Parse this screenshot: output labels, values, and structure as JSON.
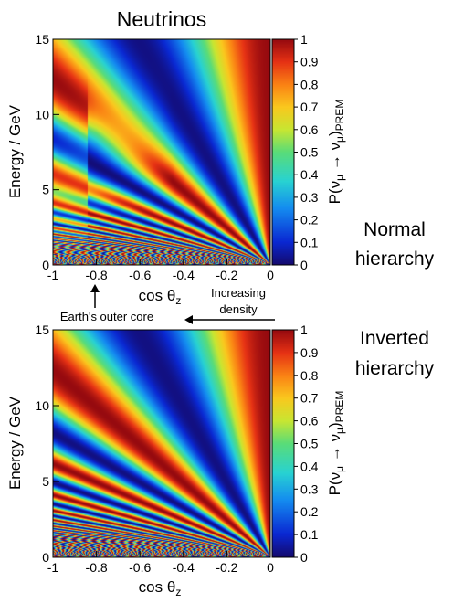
{
  "title": "Neutrinos",
  "annotations": {
    "core": "Earth's outer core",
    "density_line1": "Increasing",
    "density_line2": "density"
  },
  "colorbar": {
    "label_main": "P(ν",
    "label_sub1": "μ",
    "label_arrow": " → ν",
    "label_sub2": "μ",
    "label_close": ")",
    "label_sub3": "PREM",
    "ticks": [
      "0",
      "0.1",
      "0.2",
      "0.3",
      "0.4",
      "0.5",
      "0.6",
      "0.7",
      "0.8",
      "0.9",
      "1"
    ],
    "colormap": "rainbow"
  },
  "chart_data": [
    {
      "type": "heatmap",
      "panel_label_line1": "Normal",
      "panel_label_line2": "hierarchy",
      "xlabel_main": "cos θ",
      "xlabel_sub": "z",
      "ylabel": "Energy / GeV",
      "x_ticks": [
        "-1",
        "-0.8",
        "-0.6",
        "-0.4",
        "-0.2",
        "0"
      ],
      "y_ticks": [
        "0",
        "5",
        "10",
        "15"
      ],
      "xlim": [
        -1,
        0
      ],
      "ylim": [
        0,
        15
      ],
      "zlim": [
        0,
        1
      ],
      "z_quantity": "P(νμ → νμ) PREM",
      "features": "oscillation bands fanning from (0,0); MSW-enhanced minima near E≈4–11 GeV for cosθz < -0.5; core boundary at cosθz ≈ -0.84"
    },
    {
      "type": "heatmap",
      "panel_label_line1": "Inverted",
      "panel_label_line2": "hierarchy",
      "xlabel_main": "cos θ",
      "xlabel_sub": "z",
      "ylabel": "Energy / GeV",
      "x_ticks": [
        "-1",
        "-0.8",
        "-0.6",
        "-0.4",
        "-0.2",
        "0"
      ],
      "y_ticks": [
        "0",
        "5",
        "10",
        "15"
      ],
      "xlim": [
        -1,
        0
      ],
      "ylim": [
        0,
        15
      ],
      "zlim": [
        0,
        1
      ],
      "z_quantity": "P(νμ → νμ) PREM",
      "features": "vacuum-like oscillation bands fanning from (0,0)"
    }
  ]
}
